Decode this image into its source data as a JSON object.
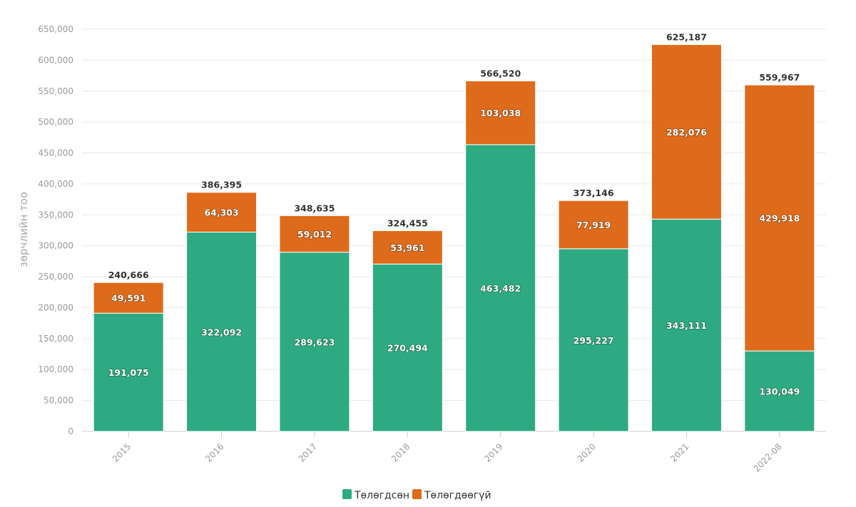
{
  "chart_data": {
    "type": "bar",
    "stacked": true,
    "title": "",
    "xlabel": "",
    "ylabel": "зөрчлийн тоо",
    "ylim": [
      0,
      650000
    ],
    "yticks": [
      0,
      50000,
      100000,
      150000,
      200000,
      250000,
      300000,
      350000,
      400000,
      450000,
      500000,
      550000,
      600000,
      650000
    ],
    "ytick_labels": [
      "0",
      "50,000",
      "100,000",
      "150,000",
      "200,000",
      "250,000",
      "300,000",
      "350,000",
      "400,000",
      "450,000",
      "500,000",
      "550,000",
      "600,000",
      "650,000"
    ],
    "categories": [
      "2015",
      "2016",
      "2017",
      "2018",
      "2019",
      "2020",
      "2021",
      "2022-08"
    ],
    "series": [
      {
        "name": "Төлөгдсөн",
        "color": "#2eaa82",
        "values": [
          191075,
          322092,
          289623,
          270494,
          463482,
          295227,
          343111,
          130049
        ],
        "labels": [
          "191,075",
          "322,092",
          "289,623",
          "270,494",
          "463,482",
          "295,227",
          "343,111",
          "130,049"
        ]
      },
      {
        "name": "Төлөгдөөгүй",
        "color": "#de6b1b",
        "values": [
          49591,
          64303,
          59012,
          53961,
          103038,
          77919,
          282076,
          429918
        ],
        "labels": [
          "49,591",
          "64,303",
          "59,012",
          "53,961",
          "103,038",
          "77,919",
          "282,076",
          "429,918"
        ]
      }
    ],
    "totals": [
      240666,
      386395,
      348635,
      324455,
      566520,
      373146,
      625187,
      559967
    ],
    "total_labels": [
      "240,666",
      "386,395",
      "348,635",
      "324,455",
      "566,520",
      "373,146",
      "625,187",
      "559,967"
    ],
    "grid": true,
    "legend_position": "bottom-center"
  }
}
